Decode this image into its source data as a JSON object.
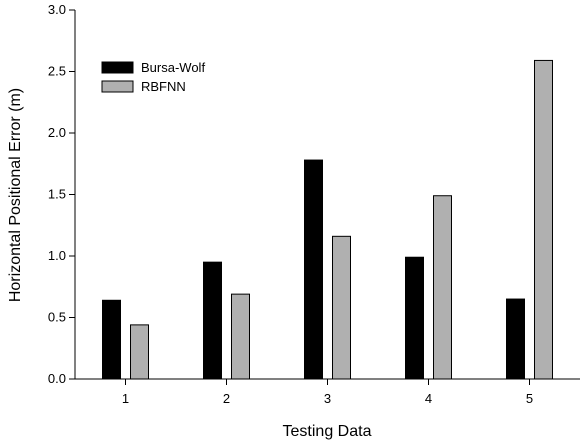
{
  "chart_data": {
    "type": "bar",
    "title": "",
    "xlabel": "Testing Data",
    "ylabel": "Horizontal Positional Error (m)",
    "categories": [
      "1",
      "2",
      "3",
      "4",
      "5"
    ],
    "series": [
      {
        "name": "Bursa-Wolf",
        "color": "#000000",
        "values": [
          0.64,
          0.95,
          1.78,
          0.99,
          0.65
        ]
      },
      {
        "name": "RBFNN",
        "color": "#b0b0b0",
        "values": [
          0.44,
          0.69,
          1.16,
          1.49,
          2.59
        ]
      }
    ],
    "ylim": [
      0.0,
      3.0
    ],
    "yticks": [
      "0.0",
      "0.5",
      "1.0",
      "1.5",
      "2.0",
      "2.5",
      "3.0"
    ],
    "grid": false,
    "legend_position": "top-left"
  }
}
